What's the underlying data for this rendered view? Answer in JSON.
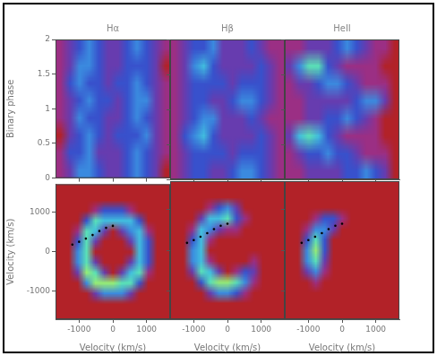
{
  "chart_data": [
    {
      "type": "heatmap",
      "title": "Hα",
      "y_label": "Binary phase",
      "xlim": [
        -1700,
        1700
      ],
      "xticks": [
        -1000,
        0,
        1000
      ],
      "ylim": [
        0,
        2
      ],
      "yticks": [
        0,
        0.5,
        1,
        1.5,
        2
      ],
      "zlim": [
        1,
        9
      ],
      "grid": false,
      "tick_labels": "y",
      "cells": [
        [
          2,
          3,
          4,
          5,
          4,
          3,
          3,
          4,
          5,
          4,
          3,
          2
        ],
        [
          2,
          3,
          5,
          5,
          4,
          3,
          3,
          4,
          4,
          4,
          3,
          1
        ],
        [
          2,
          4,
          5,
          4,
          4,
          3,
          4,
          4,
          5,
          4,
          3,
          2
        ],
        [
          2,
          3,
          4,
          5,
          4,
          4,
          3,
          4,
          5,
          5,
          3,
          2
        ],
        [
          2,
          3,
          5,
          4,
          4,
          3,
          3,
          4,
          5,
          4,
          3,
          2
        ],
        [
          1,
          3,
          4,
          5,
          4,
          3,
          4,
          4,
          4,
          5,
          3,
          2
        ],
        [
          2,
          4,
          4,
          5,
          3,
          3,
          3,
          4,
          5,
          4,
          3,
          2
        ],
        [
          2,
          3,
          5,
          5,
          4,
          3,
          3,
          4,
          5,
          4,
          3,
          1
        ]
      ]
    },
    {
      "type": "heatmap",
      "title": "Hβ",
      "xlim": [
        -1700,
        1700
      ],
      "xticks": [
        -1000,
        0,
        1000
      ],
      "ylim": [
        0,
        2
      ],
      "yticks": [
        0,
        0.5,
        1,
        1.5,
        2
      ],
      "zlim": [
        1,
        9
      ],
      "grid": false,
      "tick_labels": false,
      "cells": [
        [
          2,
          3,
          4,
          4,
          5,
          3,
          3,
          3,
          4,
          3,
          2,
          2
        ],
        [
          2,
          3,
          5,
          6,
          4,
          3,
          3,
          3,
          3,
          4,
          3,
          2
        ],
        [
          2,
          3,
          4,
          4,
          4,
          4,
          3,
          4,
          4,
          4,
          3,
          2
        ],
        [
          2,
          3,
          4,
          4,
          3,
          3,
          4,
          5,
          5,
          4,
          3,
          2
        ],
        [
          2,
          3,
          4,
          5,
          5,
          3,
          3,
          3,
          4,
          3,
          2,
          2
        ],
        [
          2,
          4,
          5,
          6,
          4,
          3,
          3,
          3,
          3,
          4,
          3,
          2
        ],
        [
          2,
          3,
          4,
          4,
          4,
          4,
          3,
          4,
          4,
          4,
          3,
          2
        ],
        [
          2,
          3,
          4,
          4,
          3,
          3,
          4,
          5,
          5,
          4,
          3,
          2
        ]
      ]
    },
    {
      "type": "heatmap",
      "title": "HeII",
      "xlim": [
        -1700,
        1700
      ],
      "xticks": [
        -1000,
        0,
        1000
      ],
      "ylim": [
        0,
        2
      ],
      "yticks": [
        0,
        0.5,
        1,
        1.5,
        2
      ],
      "zlim": [
        1,
        9
      ],
      "grid": false,
      "tick_labels": false,
      "cells": [
        [
          2,
          2,
          3,
          3,
          3,
          4,
          5,
          4,
          3,
          2,
          2,
          1
        ],
        [
          3,
          5,
          7,
          7,
          4,
          3,
          2,
          2,
          2,
          2,
          1,
          1
        ],
        [
          2,
          3,
          3,
          4,
          5,
          5,
          4,
          3,
          2,
          2,
          2,
          1
        ],
        [
          2,
          2,
          3,
          3,
          3,
          3,
          3,
          4,
          5,
          5,
          3,
          1
        ],
        [
          2,
          2,
          3,
          3,
          4,
          4,
          5,
          4,
          3,
          2,
          1,
          1
        ],
        [
          3,
          6,
          7,
          6,
          4,
          3,
          2,
          2,
          2,
          2,
          1,
          1
        ],
        [
          2,
          3,
          4,
          4,
          5,
          4,
          4,
          3,
          2,
          2,
          2,
          1
        ],
        [
          2,
          2,
          3,
          3,
          3,
          3,
          4,
          4,
          5,
          4,
          3,
          1
        ]
      ]
    },
    {
      "type": "heatmap",
      "x_label": "Velocity (km/s)",
      "y_label": "Velocity (km/s)",
      "xlim": [
        -1700,
        1700
      ],
      "xticks": [
        -1000,
        0,
        1000
      ],
      "ylim": [
        -1700,
        1700
      ],
      "yticks": [
        -1000,
        0,
        1000
      ],
      "zlim": [
        1,
        9
      ],
      "grid": false,
      "stream": {
        "x": [
          0,
          -200,
          -400,
          -600,
          -800,
          -1000,
          -1200
        ],
        "y": [
          650,
          600,
          520,
          420,
          330,
          250,
          180
        ]
      },
      "cells": [
        [
          1,
          1,
          1,
          1,
          1,
          1,
          1,
          1,
          1,
          1,
          1,
          1,
          1
        ],
        [
          1,
          1,
          1,
          1,
          1,
          1,
          1,
          1,
          1,
          1,
          1,
          1,
          1
        ],
        [
          1,
          1,
          1,
          1,
          2,
          4,
          4,
          4,
          2,
          1,
          1,
          1,
          1
        ],
        [
          1,
          1,
          1,
          4,
          7,
          6,
          6,
          6,
          6,
          4,
          1,
          1,
          1
        ],
        [
          1,
          1,
          2,
          7,
          6,
          3,
          1,
          3,
          5,
          6,
          2,
          1,
          1
        ],
        [
          1,
          1,
          4,
          7,
          3,
          1,
          1,
          1,
          3,
          6,
          4,
          1,
          1
        ],
        [
          1,
          1,
          5,
          7,
          1,
          1,
          1,
          1,
          1,
          6,
          4,
          1,
          1
        ],
        [
          1,
          1,
          5,
          7,
          3,
          1,
          1,
          1,
          3,
          6,
          4,
          1,
          1
        ],
        [
          1,
          1,
          3,
          8,
          7,
          3,
          1,
          3,
          6,
          7,
          2,
          1,
          1
        ],
        [
          1,
          1,
          1,
          5,
          8,
          8,
          8,
          7,
          7,
          4,
          1,
          1,
          1
        ],
        [
          1,
          1,
          1,
          1,
          3,
          5,
          5,
          5,
          3,
          1,
          1,
          1,
          1
        ],
        [
          1,
          1,
          1,
          1,
          1,
          1,
          1,
          1,
          1,
          1,
          1,
          1,
          1
        ],
        [
          1,
          1,
          1,
          1,
          1,
          1,
          1,
          1,
          1,
          1,
          1,
          1,
          1
        ]
      ]
    },
    {
      "type": "heatmap",
      "x_label": "Velocity (km/s)",
      "xlim": [
        -1700,
        1700
      ],
      "xticks": [
        -1000,
        0,
        1000
      ],
      "ylim": [
        -1700,
        1700
      ],
      "yticks": [
        -1000,
        0,
        1000
      ],
      "zlim": [
        1,
        9
      ],
      "grid": false,
      "tick_labels": "x",
      "stream": {
        "x": [
          0,
          -200,
          -400,
          -600,
          -800,
          -1000,
          -1200
        ],
        "y": [
          650,
          600,
          520,
          420,
          330,
          250,
          180
        ]
      },
      "cells": [
        [
          1,
          1,
          1,
          1,
          1,
          1,
          1,
          1,
          1,
          1,
          1,
          1,
          1
        ],
        [
          1,
          1,
          1,
          1,
          1,
          1,
          1,
          1,
          1,
          1,
          1,
          1,
          1
        ],
        [
          1,
          1,
          1,
          1,
          2,
          4,
          5,
          3,
          1,
          1,
          1,
          1,
          1
        ],
        [
          1,
          1,
          1,
          3,
          6,
          6,
          7,
          4,
          2,
          1,
          1,
          1,
          1
        ],
        [
          1,
          1,
          2,
          6,
          5,
          3,
          2,
          2,
          1,
          1,
          1,
          1,
          1
        ],
        [
          1,
          1,
          4,
          6,
          2,
          1,
          1,
          1,
          1,
          1,
          1,
          1,
          1
        ],
        [
          1,
          1,
          5,
          6,
          1,
          1,
          1,
          1,
          1,
          1,
          1,
          1,
          1
        ],
        [
          1,
          1,
          5,
          6,
          2,
          1,
          1,
          1,
          1,
          2,
          1,
          1,
          1
        ],
        [
          1,
          1,
          3,
          7,
          6,
          3,
          1,
          2,
          4,
          3,
          1,
          1,
          1
        ],
        [
          1,
          1,
          1,
          4,
          7,
          8,
          8,
          7,
          5,
          2,
          1,
          1,
          1
        ],
        [
          1,
          1,
          1,
          1,
          3,
          5,
          5,
          4,
          2,
          1,
          1,
          1,
          1
        ],
        [
          1,
          1,
          1,
          1,
          1,
          1,
          1,
          1,
          1,
          1,
          1,
          1,
          1
        ],
        [
          1,
          1,
          1,
          1,
          1,
          1,
          1,
          1,
          1,
          1,
          1,
          1,
          1
        ]
      ]
    },
    {
      "type": "heatmap",
      "x_label": "Velocity (km/s)",
      "xlim": [
        -1700,
        1700
      ],
      "xticks": [
        -1000,
        0,
        1000
      ],
      "ylim": [
        -1700,
        1700
      ],
      "yticks": [
        -1000,
        0,
        1000
      ],
      "zlim": [
        1,
        9
      ],
      "grid": false,
      "tick_labels": "x",
      "stream": {
        "x": [
          0,
          -200,
          -400,
          -600,
          -800,
          -1000,
          -1200
        ],
        "y": [
          650,
          600,
          520,
          420,
          330,
          250,
          180
        ]
      },
      "cells": [
        [
          1,
          1,
          1,
          1,
          1,
          1,
          1,
          1,
          1,
          1,
          1,
          1,
          1
        ],
        [
          1,
          1,
          1,
          1,
          1,
          1,
          1,
          1,
          1,
          1,
          1,
          1,
          1
        ],
        [
          1,
          1,
          1,
          1,
          1,
          1,
          1,
          1,
          1,
          1,
          1,
          1,
          1
        ],
        [
          1,
          1,
          1,
          2,
          4,
          4,
          2,
          1,
          1,
          1,
          1,
          1,
          1
        ],
        [
          1,
          1,
          2,
          5,
          5,
          3,
          1,
          1,
          1,
          1,
          1,
          1,
          1
        ],
        [
          1,
          1,
          4,
          7,
          4,
          1,
          1,
          1,
          1,
          1,
          1,
          1,
          1
        ],
        [
          1,
          1,
          5,
          8,
          4,
          1,
          1,
          1,
          1,
          1,
          1,
          1,
          1
        ],
        [
          1,
          1,
          5,
          7,
          3,
          1,
          1,
          1,
          1,
          1,
          1,
          1,
          1
        ],
        [
          1,
          1,
          3,
          5,
          2,
          1,
          1,
          1,
          1,
          1,
          1,
          1,
          1
        ],
        [
          1,
          1,
          1,
          2,
          1,
          1,
          1,
          1,
          1,
          1,
          1,
          1,
          1
        ],
        [
          1,
          1,
          1,
          1,
          1,
          1,
          1,
          1,
          1,
          1,
          1,
          1,
          1
        ],
        [
          1,
          1,
          1,
          1,
          1,
          1,
          1,
          1,
          1,
          1,
          1,
          1,
          1
        ],
        [
          1,
          1,
          1,
          1,
          1,
          1,
          1,
          1,
          1,
          1,
          1,
          1,
          1
        ]
      ]
    }
  ]
}
